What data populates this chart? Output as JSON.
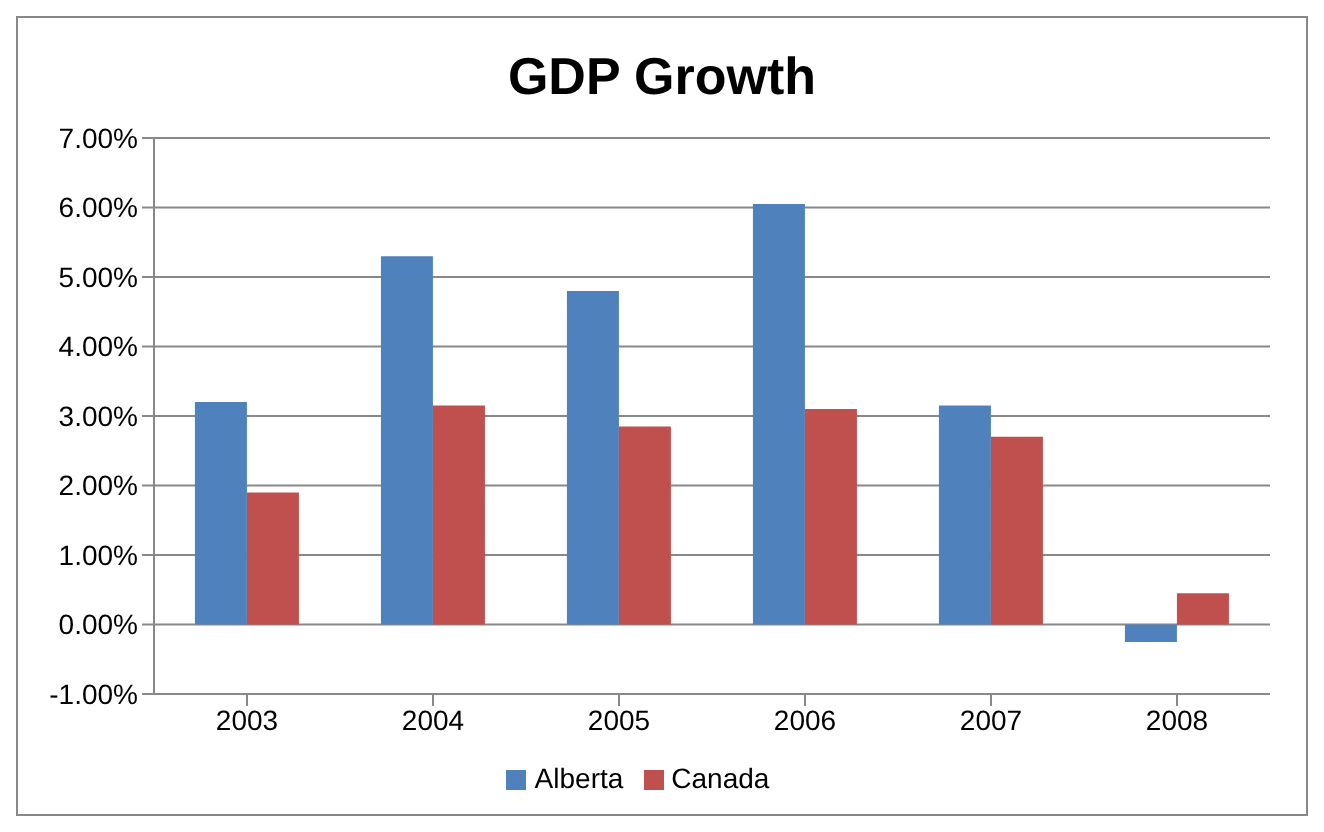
{
  "chart_data": {
    "type": "bar",
    "title": "GDP Growth",
    "categories": [
      "2003",
      "2004",
      "2005",
      "2006",
      "2007",
      "2008"
    ],
    "series": [
      {
        "name": "Alberta",
        "color": "#4f81bd",
        "values": [
          3.2,
          5.3,
          4.8,
          6.05,
          3.15,
          -0.25
        ]
      },
      {
        "name": "Canada",
        "color": "#c0504d",
        "values": [
          1.9,
          3.15,
          2.85,
          3.1,
          2.7,
          0.45
        ]
      }
    ],
    "ylim": [
      -1,
      7
    ],
    "yticks": [
      {
        "value": -1,
        "label": "-1.00%"
      },
      {
        "value": 0,
        "label": "0.00%"
      },
      {
        "value": 1,
        "label": "1.00%"
      },
      {
        "value": 2,
        "label": "2.00%"
      },
      {
        "value": 3,
        "label": "3.00%"
      },
      {
        "value": 4,
        "label": "4.00%"
      },
      {
        "value": 5,
        "label": "5.00%"
      },
      {
        "value": 6,
        "label": "6.00%"
      },
      {
        "value": 7,
        "label": "7.00%"
      }
    ],
    "grid": "y",
    "legend": "bottom"
  }
}
